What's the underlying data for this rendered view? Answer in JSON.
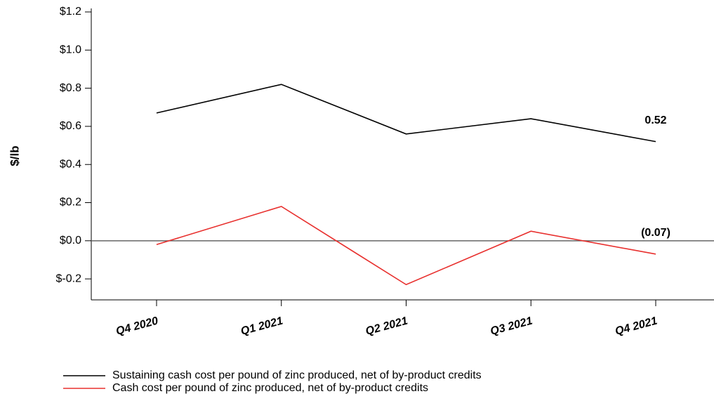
{
  "chart_data": {
    "type": "line",
    "y_label": "$/lb",
    "categories": [
      "Q4 2020",
      "Q1 2021",
      "Q2 2021",
      "Q3 2021",
      "Q4 2021"
    ],
    "series": [
      {
        "name": "Sustaining cash cost per pound of zinc produced, net of by-product credits",
        "color": "#000000",
        "values": [
          0.67,
          0.82,
          0.56,
          0.64,
          0.52
        ],
        "value_labels": [
          null,
          null,
          null,
          null,
          "0.52"
        ]
      },
      {
        "name": "Cash cost per pound of zinc produced, net of by-product credits",
        "color": "#e8302e",
        "values": [
          -0.02,
          0.18,
          -0.23,
          0.05,
          -0.07
        ],
        "value_labels": [
          null,
          null,
          null,
          null,
          "(0.07)"
        ]
      }
    ],
    "ylim": [
      -0.31,
      1.2
    ],
    "yticks": [
      {
        "value": -0.2,
        "label": "$-0.2"
      },
      {
        "value": 0,
        "label": "$0.0"
      },
      {
        "value": 0.2,
        "label": "$0.2"
      },
      {
        "value": 0.4,
        "label": "$0.4"
      },
      {
        "value": 0.6,
        "label": "$0.6"
      },
      {
        "value": 0.8,
        "label": "$0.8"
      },
      {
        "value": 1.0,
        "label": "$1.0"
      },
      {
        "value": 1.2,
        "label": "$1.2"
      }
    ],
    "zero_line": true,
    "legend": "bottom"
  }
}
